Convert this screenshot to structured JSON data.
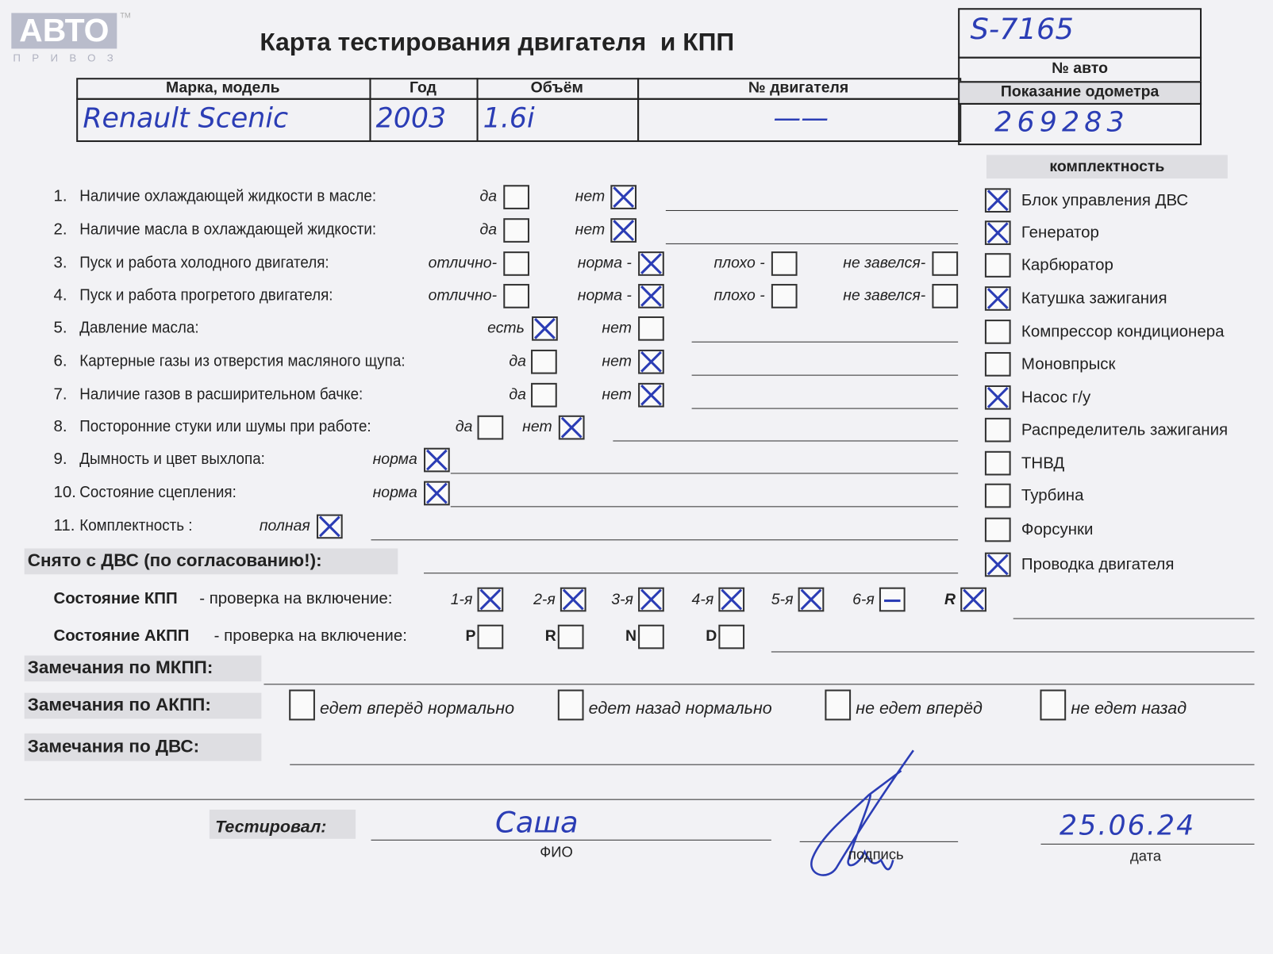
{
  "logo": {
    "text": "АВТО",
    "sub": "ПРИВОЗ",
    "tm": "TM"
  },
  "title": "Карта тестирования двигателя  и КПП",
  "header_table": {
    "columns": [
      "Марка, модель",
      "Год",
      "Объём",
      "№ двигателя"
    ],
    "values": [
      "Renault Scenic",
      "2003",
      "1.6i",
      "——"
    ],
    "auto_number_label": "№ авто",
    "auto_number": "S-7165",
    "odometer_label": "Показание одометра",
    "odometer": "269283"
  },
  "checklist": [
    {
      "num": "1.",
      "label": "Наличие охлаждающей жидкости в масле:",
      "options": [
        {
          "label": "да",
          "checked": false
        },
        {
          "label": "нет",
          "checked": true
        }
      ]
    },
    {
      "num": "2.",
      "label": "Наличие масла в охлаждающей жидкости:",
      "options": [
        {
          "label": "да",
          "checked": false
        },
        {
          "label": "нет",
          "checked": true
        }
      ]
    },
    {
      "num": "3.",
      "label": "Пуск и работа холодного двигателя:",
      "options": [
        {
          "label": "отлично-",
          "checked": false
        },
        {
          "label": "норма -",
          "checked": true
        },
        {
          "label": "плохо -",
          "checked": false
        },
        {
          "label": "не завелся-",
          "checked": false
        }
      ]
    },
    {
      "num": "4.",
      "label": "Пуск и работа прогретого двигателя:",
      "options": [
        {
          "label": "отлично-",
          "checked": false
        },
        {
          "label": "норма -",
          "checked": true
        },
        {
          "label": "плохо -",
          "checked": false
        },
        {
          "label": "не завелся-",
          "checked": false
        }
      ]
    },
    {
      "num": "5.",
      "label": "Давление масла:",
      "options": [
        {
          "label": "есть",
          "checked": true
        },
        {
          "label": "нет",
          "checked": false
        }
      ]
    },
    {
      "num": "6.",
      "label": "Картерные газы из отверстия масляного щупа:",
      "options": [
        {
          "label": "да",
          "checked": false
        },
        {
          "label": "нет",
          "checked": true
        }
      ]
    },
    {
      "num": "7.",
      "label": "Наличие газов в расширительном бачке:",
      "options": [
        {
          "label": "да",
          "checked": false
        },
        {
          "label": "нет",
          "checked": true
        }
      ]
    },
    {
      "num": "8.",
      "label": "Посторонние стуки или шумы при работе:",
      "options": [
        {
          "label": "да",
          "checked": false
        },
        {
          "label": "нет",
          "checked": true
        }
      ]
    },
    {
      "num": "9.",
      "label": "Дымность и цвет выхлопа:",
      "options": [
        {
          "label": "норма",
          "checked": true
        }
      ]
    },
    {
      "num": "10.",
      "label": "Состояние сцепления:",
      "options": [
        {
          "label": "норма",
          "checked": true
        }
      ]
    },
    {
      "num": "11.",
      "label": "Комплектность :",
      "options": [
        {
          "label": "полная",
          "checked": true
        }
      ]
    }
  ],
  "completeness": {
    "title": "комплектность",
    "items": [
      {
        "label": "Блок управления ДВС",
        "checked": true
      },
      {
        "label": "Генератор",
        "checked": true
      },
      {
        "label": "Карбюратор",
        "checked": false
      },
      {
        "label": "Катушка зажигания",
        "checked": true
      },
      {
        "label": "Компрессор кондиционера",
        "checked": false
      },
      {
        "label": "Моновпрыск",
        "checked": false
      },
      {
        "label": "Насос г/у",
        "checked": true
      },
      {
        "label": "Распределитель зажигания",
        "checked": false
      },
      {
        "label": "ТНВД",
        "checked": false
      },
      {
        "label": "Турбина",
        "checked": false
      },
      {
        "label": "Форсунки",
        "checked": false
      },
      {
        "label": "Проводка двигателя",
        "checked": true
      }
    ]
  },
  "removed_label": "Снято с ДВС (по согласованию!):",
  "manual_gearbox": {
    "label_bold": "Состояние КПП",
    "label_rest": " - проверка на включение:",
    "gears": [
      {
        "label": "1-я",
        "state": "checked"
      },
      {
        "label": "2-я",
        "state": "checked"
      },
      {
        "label": "3-я",
        "state": "checked"
      },
      {
        "label": "4-я",
        "state": "checked"
      },
      {
        "label": "5-я",
        "state": "checked"
      },
      {
        "label": "6-я",
        "state": "dash"
      },
      {
        "label": "R",
        "state": "checked"
      }
    ]
  },
  "auto_gearbox": {
    "label_bold": "Состояние АКПП",
    "label_rest": " - проверка на включение:",
    "modes": [
      {
        "label": "P",
        "checked": false
      },
      {
        "label": "R",
        "checked": false
      },
      {
        "label": "N",
        "checked": false
      },
      {
        "label": "D",
        "checked": false
      }
    ]
  },
  "remarks_mkpp": "Замечания по МКПП:",
  "remarks_akpp": {
    "label": "Замечания по АКПП:",
    "options": [
      {
        "label": "едет вперёд нормально",
        "checked": false
      },
      {
        "label": "едет назад нормально",
        "checked": false
      },
      {
        "label": "не едет вперёд",
        "checked": false
      },
      {
        "label": "не едет назад",
        "checked": false
      }
    ]
  },
  "remarks_engine": "Замечания по ДВС:",
  "footer": {
    "tested_label": "Тестировал:",
    "name": "Саша",
    "name_caption": "ФИО",
    "signature_caption": "подпись",
    "date": "25.06.24",
    "date_caption": "дата"
  },
  "colors": {
    "ink": "#2b3db5",
    "paper": "#f2f2f5",
    "header_grey": "#dedee2"
  }
}
